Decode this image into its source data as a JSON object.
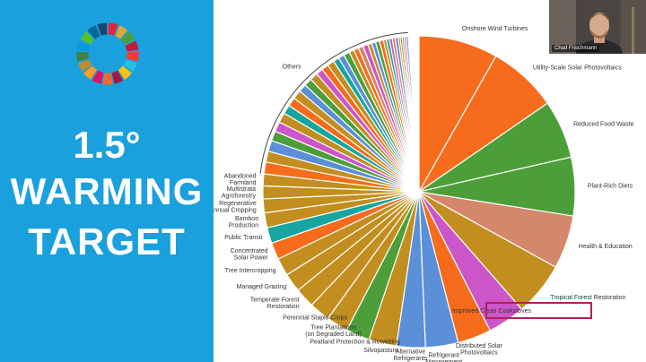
{
  "slide": {
    "headline": [
      "1.5°",
      "WARMING",
      "TARGET"
    ],
    "sdg_colors": [
      "#e5243b",
      "#dda63a",
      "#4c9f38",
      "#c5192d",
      "#ff3a21",
      "#26bde2",
      "#fcc30b",
      "#a21942",
      "#fd6925",
      "#dd1367",
      "#fd9d24",
      "#bf8b2e",
      "#3f7e44",
      "#0a97d9",
      "#56c02b",
      "#00689d",
      "#19486a"
    ]
  },
  "video": {
    "participant_name": "Chad Frischmann"
  },
  "highlight": {
    "label": "Improved Clean Cookstoves",
    "color": "#b0225a"
  },
  "chart_data": {
    "type": "pie",
    "title": "",
    "slices": [
      {
        "label": "Onshore Wind Turbines",
        "value": 8.0,
        "color": "#f76b1c"
      },
      {
        "label": "Utility-Scale Solar Photovoltaics",
        "value": 7.0,
        "color": "#f76b1c"
      },
      {
        "label": "Reduced Food Waste",
        "value": 5.9,
        "color": "#4c9f38"
      },
      {
        "label": "Plant-Rich Diets",
        "value": 5.9,
        "color": "#4c9f38"
      },
      {
        "label": "Health & Education",
        "value": 5.4,
        "color": "#d4876a"
      },
      {
        "label": "Tropical Forest Restoration",
        "value": 5.4,
        "color": "#c28e1f"
      },
      {
        "label": "Improved Clean Cookstoves",
        "value": 3.8,
        "color": "#cc55c8"
      },
      {
        "label": "Distributed Solar Photovoltaics",
        "value": 3.4,
        "color": "#f76b1c"
      },
      {
        "label": "Refrigerant Management",
        "value": 3.3,
        "color": "#5b8fd8"
      },
      {
        "label": "Alternative Refrigerants",
        "value": 2.9,
        "color": "#5b8fd8"
      },
      {
        "label": "Silvopasture",
        "value": 2.8,
        "color": "#c28e1f"
      },
      {
        "label": "Peatland Protection & Rewetting",
        "value": 2.4,
        "color": "#4c9f38"
      },
      {
        "label": "Tree Plantations (on Degraded Land)",
        "value": 2.2,
        "color": "#c28e1f"
      },
      {
        "label": "Perennial Staple Crops",
        "value": 2.1,
        "color": "#c28e1f"
      },
      {
        "label": "Temperate Forest Restoration",
        "value": 2.0,
        "color": "#c28e1f"
      },
      {
        "label": "Managed Grazing",
        "value": 1.9,
        "color": "#c28e1f"
      },
      {
        "label": "Tree Intercropping",
        "value": 1.8,
        "color": "#c28e1f"
      },
      {
        "label": "Concentrated Solar Power",
        "value": 1.7,
        "color": "#f76b1c"
      },
      {
        "label": "Public Transit",
        "value": 1.6,
        "color": "#16a5a0"
      },
      {
        "label": "Bamboo Production",
        "value": 1.5,
        "color": "#c28e1f"
      },
      {
        "label": "Regenerative Annual Cropping",
        "value": 1.4,
        "color": "#c28e1f"
      },
      {
        "label": "Multistrata Agroforestry",
        "value": 1.3,
        "color": "#c28e1f"
      },
      {
        "label": "Abandoned Farmland",
        "value": 1.2,
        "color": "#c28e1f"
      },
      {
        "label": "",
        "value": 1.2,
        "color": "#f76b1c"
      },
      {
        "label": "",
        "value": 1.1,
        "color": "#c28e1f"
      },
      {
        "label": "",
        "value": 1.1,
        "color": "#5b8fd8"
      },
      {
        "label": "",
        "value": 1.0,
        "color": "#4c9f38"
      },
      {
        "label": "",
        "value": 1.0,
        "color": "#cc55c8"
      },
      {
        "label": "",
        "value": 1.0,
        "color": "#c28e1f"
      },
      {
        "label": "",
        "value": 0.9,
        "color": "#16a5a0"
      },
      {
        "label": "",
        "value": 0.9,
        "color": "#f76b1c"
      },
      {
        "label": "",
        "value": 0.9,
        "color": "#c28e1f"
      },
      {
        "label": "",
        "value": 0.8,
        "color": "#5b8fd8"
      },
      {
        "label": "",
        "value": 0.8,
        "color": "#4c9f38"
      },
      {
        "label": "",
        "value": 0.8,
        "color": "#c28e1f"
      },
      {
        "label": "",
        "value": 0.7,
        "color": "#cc55c8"
      },
      {
        "label": "",
        "value": 0.7,
        "color": "#f76b1c"
      },
      {
        "label": "",
        "value": 0.7,
        "color": "#c28e1f"
      },
      {
        "label": "",
        "value": 0.6,
        "color": "#16a5a0"
      },
      {
        "label": "",
        "value": 0.6,
        "color": "#5b8fd8"
      },
      {
        "label": "",
        "value": 0.6,
        "color": "#4c9f38"
      },
      {
        "label": "",
        "value": 0.5,
        "color": "#c28e1f"
      },
      {
        "label": "",
        "value": 0.5,
        "color": "#f76b1c"
      },
      {
        "label": "",
        "value": 0.5,
        "color": "#d4876a"
      },
      {
        "label": "",
        "value": 0.5,
        "color": "#cc55c8"
      },
      {
        "label": "",
        "value": 0.4,
        "color": "#c28e1f"
      },
      {
        "label": "",
        "value": 0.4,
        "color": "#5b8fd8"
      },
      {
        "label": "",
        "value": 0.4,
        "color": "#4c9f38"
      },
      {
        "label": "",
        "value": 0.4,
        "color": "#f76b1c"
      },
      {
        "label": "",
        "value": 0.3,
        "color": "#c28e1f"
      },
      {
        "label": "",
        "value": 0.3,
        "color": "#16a5a0"
      },
      {
        "label": "",
        "value": 0.3,
        "color": "#cc55c8"
      },
      {
        "label": "",
        "value": 0.3,
        "color": "#d4876a"
      },
      {
        "label": "",
        "value": 0.3,
        "color": "#5b8fd8"
      },
      {
        "label": "",
        "value": 0.2,
        "color": "#f76b1c"
      },
      {
        "label": "",
        "value": 0.2,
        "color": "#4c9f38"
      },
      {
        "label": "",
        "value": 0.2,
        "color": "#c28e1f"
      },
      {
        "label": "",
        "value": 0.2,
        "color": "#cc55c8"
      },
      {
        "label": "",
        "value": 0.2,
        "color": "#5b8fd8"
      }
    ],
    "others_label": "Others",
    "legend_placement": "none"
  }
}
